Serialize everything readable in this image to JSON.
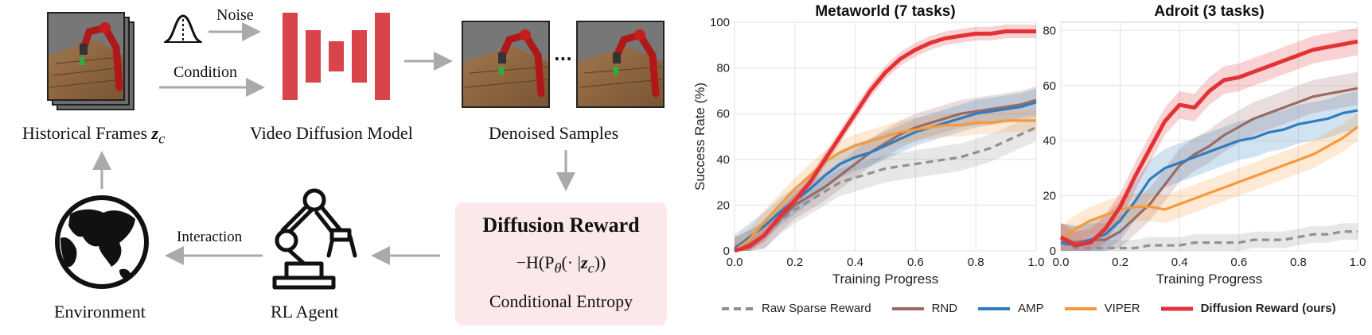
{
  "diagram": {
    "historical_frames_label": "Historical Frames",
    "historical_frames_symbol": "z",
    "historical_frames_subscript": "c",
    "noise_label": "Noise",
    "condition_label": "Condition",
    "video_model_label": "Video Diffusion Model",
    "denoised_label": "Denoised Samples",
    "ellipsis": "···",
    "reward_title": "Diffusion Reward",
    "reward_formula_pre": "−H(P",
    "reward_formula_sub": "θ",
    "reward_formula_mid": "(· |",
    "reward_formula_z": "z",
    "reward_formula_zsub": "c",
    "reward_formula_post": "))",
    "reward_subtitle": "Conditional Entropy",
    "interaction_label": "Interaction",
    "environment_label": "Environment",
    "agent_label": "RL Agent",
    "colors": {
      "model": "#d9434a",
      "arrow": "#aaaaaa",
      "reward_bg": "#fbe9ea"
    }
  },
  "chart_data": [
    {
      "type": "line",
      "title": "Metaworld (7 tasks)",
      "xlabel": "Training Progress",
      "ylabel": "Success Rate (%)",
      "xlim": [
        0,
        1.0
      ],
      "ylim": [
        0,
        100
      ],
      "xticks": [
        "0.0",
        "0.2",
        "0.4",
        "0.6",
        "0.8",
        "1.0"
      ],
      "yticks": [
        "0",
        "20",
        "40",
        "60",
        "80",
        "100"
      ],
      "x": [
        0,
        0.05,
        0.1,
        0.15,
        0.2,
        0.25,
        0.3,
        0.35,
        0.4,
        0.45,
        0.5,
        0.55,
        0.6,
        0.65,
        0.7,
        0.75,
        0.8,
        0.85,
        0.9,
        0.95,
        1.0
      ],
      "series": [
        {
          "name": "Raw Sparse Reward",
          "color": "#909090",
          "dash": true,
          "values": [
            0,
            3,
            7,
            13,
            18,
            22,
            26,
            30,
            32,
            34,
            36,
            37,
            38,
            39,
            40,
            41,
            43,
            45,
            48,
            51,
            54
          ],
          "band": 6
        },
        {
          "name": "RND",
          "color": "#9a6b63",
          "dash": false,
          "values": [
            0,
            3,
            7,
            14,
            20,
            24,
            28,
            33,
            38,
            43,
            47,
            51,
            54,
            56,
            58,
            60,
            61,
            62,
            63,
            64,
            66
          ],
          "band": 6
        },
        {
          "name": "AMP",
          "color": "#2f7cbf",
          "dash": false,
          "values": [
            1,
            6,
            11,
            17,
            22,
            27,
            33,
            38,
            41,
            43,
            46,
            49,
            52,
            54,
            56,
            58,
            60,
            61,
            62,
            63,
            65
          ],
          "band": 6
        },
        {
          "name": "VIPER",
          "color": "#f49a3c",
          "dash": false,
          "values": [
            0,
            5,
            13,
            20,
            27,
            33,
            39,
            43,
            46,
            48,
            50,
            52,
            53,
            54,
            55,
            55,
            56,
            56,
            57,
            57,
            57
          ],
          "band": 5
        },
        {
          "name": "Diffusion Reward (ours)",
          "color": "#e23236",
          "dash": false,
          "bold": true,
          "values": [
            0,
            2,
            7,
            15,
            22,
            30,
            40,
            50,
            60,
            70,
            78,
            84,
            88,
            91,
            93,
            94,
            95,
            95,
            96,
            96,
            96
          ],
          "band": 3
        }
      ]
    },
    {
      "type": "line",
      "title": "Adroit (3 tasks)",
      "xlabel": "Training Progress",
      "ylabel": "",
      "xlim": [
        0,
        1.0
      ],
      "ylim": [
        0,
        83
      ],
      "xticks": [
        "0.0",
        "0.2",
        "0.4",
        "0.6",
        "0.8",
        "1.0"
      ],
      "yticks": [
        "0",
        "20",
        "40",
        "60",
        "80"
      ],
      "x": [
        0,
        0.05,
        0.1,
        0.15,
        0.2,
        0.25,
        0.3,
        0.35,
        0.4,
        0.45,
        0.5,
        0.55,
        0.6,
        0.65,
        0.7,
        0.75,
        0.8,
        0.85,
        0.9,
        0.95,
        1.0
      ],
      "series": [
        {
          "name": "Raw Sparse Reward",
          "color": "#909090",
          "dash": true,
          "values": [
            3,
            1,
            1,
            1,
            1,
            1,
            2,
            2,
            2,
            3,
            3,
            3,
            3,
            4,
            4,
            4,
            5,
            6,
            6,
            7,
            7
          ],
          "band": 3
        },
        {
          "name": "RND",
          "color": "#9a6b63",
          "dash": false,
          "values": [
            4,
            3,
            4,
            4,
            7,
            12,
            17,
            24,
            31,
            35,
            38,
            42,
            45,
            48,
            50,
            52,
            54,
            56,
            57,
            58,
            59
          ],
          "band": 6
        },
        {
          "name": "AMP",
          "color": "#2f7cbf",
          "dash": false,
          "values": [
            3,
            2,
            4,
            6,
            11,
            18,
            26,
            30,
            32,
            34,
            36,
            38,
            40,
            41,
            43,
            44,
            46,
            47,
            48,
            50,
            51
          ],
          "band": 7
        },
        {
          "name": "VIPER",
          "color": "#f49a3c",
          "dash": false,
          "values": [
            4,
            8,
            11,
            13,
            15,
            16,
            16,
            15,
            17,
            19,
            21,
            23,
            25,
            27,
            29,
            31,
            33,
            35,
            38,
            41,
            45
          ],
          "band": 5
        },
        {
          "name": "Diffusion Reward (ours)",
          "color": "#e23236",
          "dash": false,
          "bold": true,
          "values": [
            5,
            2,
            3,
            8,
            16,
            27,
            37,
            47,
            53,
            52,
            58,
            62,
            63,
            65,
            67,
            69,
            71,
            73,
            74,
            75,
            76
          ],
          "band": 5
        }
      ]
    }
  ]
}
